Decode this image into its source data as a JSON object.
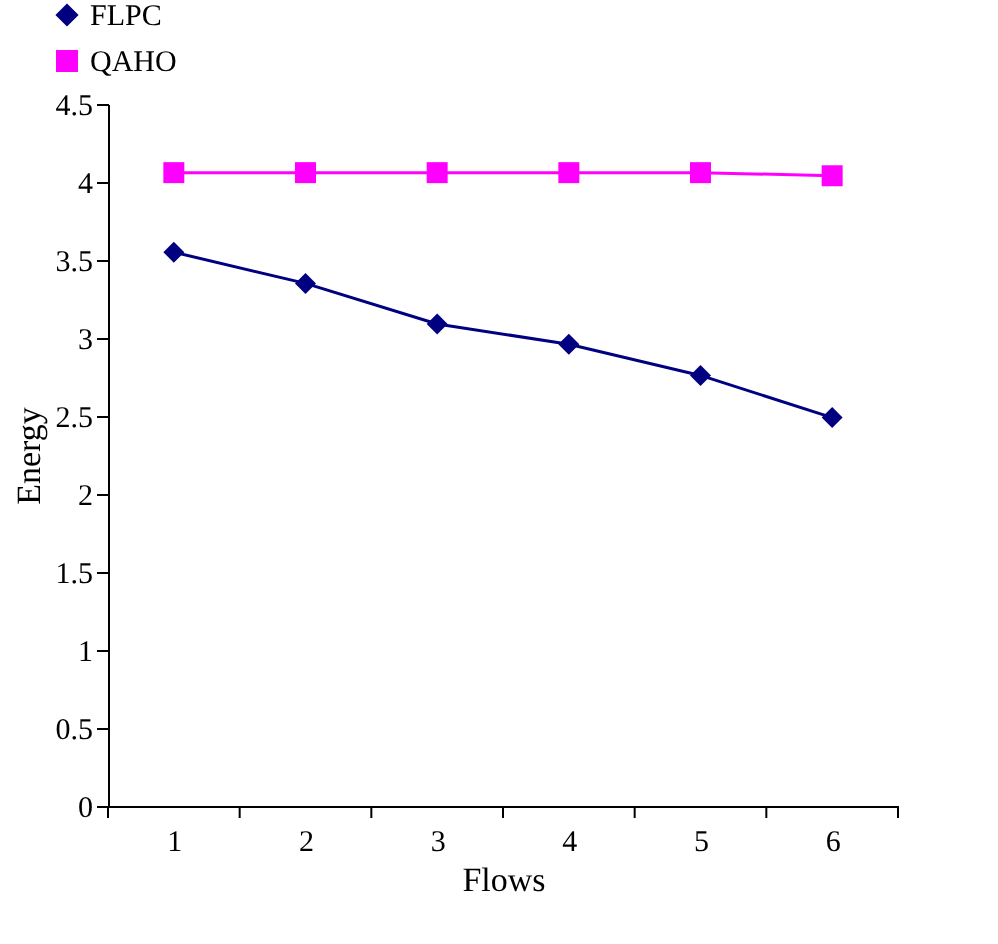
{
  "chart_data": {
    "type": "line",
    "xlabel": "Flows",
    "ylabel": "Energy",
    "categories": [
      "1",
      "2",
      "3",
      "4",
      "5",
      "6"
    ],
    "series": [
      {
        "name": "FLPC",
        "color": "#000080",
        "marker": "diamond",
        "values": [
          3.55,
          3.35,
          3.09,
          2.96,
          2.76,
          2.49
        ]
      },
      {
        "name": "QAHO",
        "color": "#ff00ff",
        "marker": "square",
        "values": [
          4.06,
          4.06,
          4.06,
          4.06,
          4.06,
          4.04
        ]
      }
    ],
    "ylim": [
      0,
      4.5
    ],
    "yticks": [
      0,
      0.5,
      1,
      1.5,
      2,
      2.5,
      3,
      3.5,
      4,
      4.5
    ],
    "grid": false,
    "legend": "top left",
    "line_style": "solid"
  }
}
